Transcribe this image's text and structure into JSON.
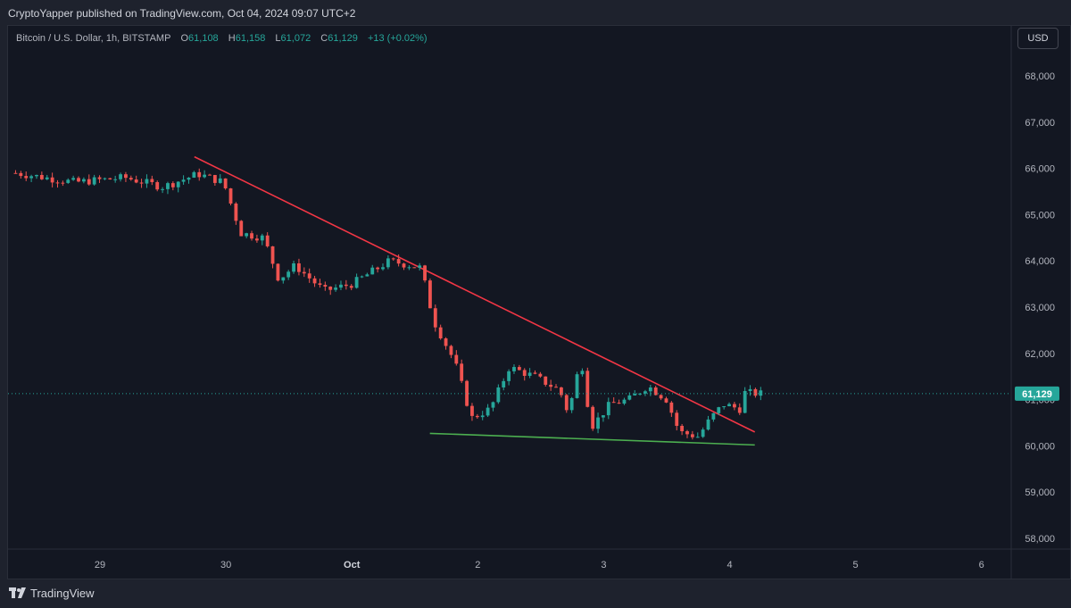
{
  "header": {
    "published_text": "CryptoYapper published on TradingView.com, Oct 04, 2024 09:07 UTC+2"
  },
  "legend": {
    "symbol": "Bitcoin / U.S. Dollar, 1h, BITSTAMP",
    "open_label": "O",
    "open": "61,108",
    "high_label": "H",
    "high": "61,158",
    "low_label": "L",
    "low": "61,072",
    "close_label": "C",
    "close": "61,129",
    "change": "+13 (+0.02%)"
  },
  "currency_button": "USD",
  "footer": {
    "brand": "TradingView"
  },
  "colors": {
    "background": "#131722",
    "up": "#26a69a",
    "down": "#ef5350",
    "resistance_line": "#f23645",
    "support_line": "#4caf50",
    "price_tag": "#26a69a",
    "axis_text": "#b2b5be"
  },
  "chart_data": {
    "type": "candlestick",
    "timeframe": "1h",
    "y_axis": {
      "min": 57800,
      "max": 68300,
      "ticks": [
        58000,
        59000,
        60000,
        61000,
        62000,
        63000,
        64000,
        65000,
        66000,
        67000,
        68000
      ],
      "tick_labels": [
        "58,000",
        "59,000",
        "60,000",
        "61,000",
        "62,000",
        "63,000",
        "64,000",
        "65,000",
        "66,000",
        "67,000",
        "68,000"
      ]
    },
    "x_axis": {
      "ticks": [
        {
          "day": 29,
          "label": "29"
        },
        {
          "day": 30,
          "label": "30"
        },
        {
          "day": 31,
          "label": "Oct"
        },
        {
          "day": 32,
          "label": "2"
        },
        {
          "day": 33,
          "label": "3"
        },
        {
          "day": 34,
          "label": "4"
        },
        {
          "day": 35,
          "label": "5"
        },
        {
          "day": 36,
          "label": "6"
        }
      ],
      "range": [
        28.3,
        36.3
      ]
    },
    "last_price": 61129,
    "last_price_label": "61,129",
    "anchors": [
      {
        "day": 28.33,
        "price": 65900
      },
      {
        "day": 28.8,
        "price": 65700
      },
      {
        "day": 29.2,
        "price": 65800
      },
      {
        "day": 29.5,
        "price": 65600
      },
      {
        "day": 29.78,
        "price": 65880
      },
      {
        "day": 29.98,
        "price": 65700
      },
      {
        "day": 30.12,
        "price": 64600
      },
      {
        "day": 30.3,
        "price": 64500
      },
      {
        "day": 30.42,
        "price": 63600
      },
      {
        "day": 30.55,
        "price": 63900
      },
      {
        "day": 30.78,
        "price": 63350
      },
      {
        "day": 31.0,
        "price": 63500
      },
      {
        "day": 31.3,
        "price": 64000
      },
      {
        "day": 31.55,
        "price": 63850
      },
      {
        "day": 31.65,
        "price": 62700
      },
      {
        "day": 31.82,
        "price": 61800
      },
      {
        "day": 31.95,
        "price": 60600
      },
      {
        "day": 32.1,
        "price": 60800
      },
      {
        "day": 32.25,
        "price": 61700
      },
      {
        "day": 32.45,
        "price": 61500
      },
      {
        "day": 32.65,
        "price": 61200
      },
      {
        "day": 32.72,
        "price": 60700
      },
      {
        "day": 32.82,
        "price": 61900
      },
      {
        "day": 32.9,
        "price": 60400
      },
      {
        "day": 33.05,
        "price": 60900
      },
      {
        "day": 33.2,
        "price": 61000
      },
      {
        "day": 33.35,
        "price": 61300
      },
      {
        "day": 33.5,
        "price": 61000
      },
      {
        "day": 33.6,
        "price": 60300
      },
      {
        "day": 33.75,
        "price": 60200
      },
      {
        "day": 33.85,
        "price": 60600
      },
      {
        "day": 33.95,
        "price": 60900
      },
      {
        "day": 34.08,
        "price": 60800
      },
      {
        "day": 34.12,
        "price": 61150
      },
      {
        "day": 34.28,
        "price": 61120
      }
    ],
    "trendlines": [
      {
        "name": "resistance",
        "color": "#f23645",
        "start": {
          "day": 29.75,
          "price": 66250
        },
        "end": {
          "day": 34.2,
          "price": 60300
        }
      },
      {
        "name": "support",
        "color": "#4caf50",
        "start": {
          "day": 31.62,
          "price": 60270
        },
        "end": {
          "day": 34.2,
          "price": 60020
        }
      }
    ]
  }
}
